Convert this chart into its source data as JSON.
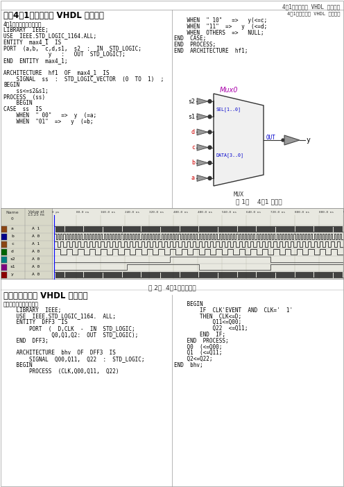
{
  "title": "4选1多路选择器 VHDL 语言设计",
  "section1_title": "一．4选1多路选择器 VHDL 语言设计",
  "section2_title": "二．三位触发器 VHDL 语言设计",
  "left_code_lines": [
    "4选1多路选择器源代码：",
    "LIBRARY  IEEE;",
    "USE  IEEE.STD_LOGIC_1164.ALL;",
    "ENTITY  max4_1  IS",
    "PORT  (a,b,  c,d,s1,  s2  :  IN  STD_LOGIC;",
    "              y   :   OUT  STD_LOGIC);",
    "END  ENTITY  max4_1;",
    "",
    "ARCHITECTURE  hf1  OF  max4_1  IS",
    "    SIGNAL  ss  :  STD_LOGIC_VECTOR  (0  TO  1)  ;",
    "BEGIN",
    "    ss<=s2&s1;",
    "PROCESS  (ss)",
    "    BEGIN",
    "CASE  ss  IS",
    "    WHEN  \" 00\"   =>  y  (=a;",
    "    WHEN  \"01\"  =>   y  (=b;"
  ],
  "right_header": "4选1多路选择器 VHDL 语言设计",
  "right_code_top": [
    "    WHEN  \" 10\"   =>   y(<=c;",
    "    WHEN  \"11\"  =>   y  (<=d;",
    "    WHEN  OTHERS  =>   NULL;",
    "END  CASE;",
    "END  PROCESS;",
    "END  ARCHITECTURE  hf1;"
  ],
  "mux0_label": "Mux0",
  "sel_label": "SEL[1..0]",
  "data_label": "DATA[3..0]",
  "out_label": "OUT",
  "y_out_label": "y",
  "mux_label": "MUX",
  "fig1_caption": "图 1．    4选1 电路图",
  "fig2_caption": "图 2．  4选1波形仿真图",
  "input_labels": [
    "s2",
    "s1",
    "d",
    "c",
    "b",
    "a"
  ],
  "wf_sig_names": [
    "0",
    "a",
    "b",
    "c",
    "d",
    "s2",
    "s1",
    "y"
  ],
  "wf_sig_values": [
    "",
    "A 1",
    "A 0",
    "A 1",
    "A 0",
    "A 0",
    "A 0",
    "A 0"
  ],
  "wf_colors": [
    "#888888",
    "#8B4513",
    "#00008B",
    "#8B4513",
    "#006400",
    "#008080",
    "#800080",
    "#8B0000"
  ],
  "section2_left": [
    "三位触发器设计源代码：",
    "    LIBRARY  IEEE;",
    "    USE  IEEE.STD_LOGIC_1164.  ALL;",
    "    ENTITY  DFF3  IS",
    "        PORT  (  D,CLK  -  IN  STD_LOGIC;",
    "               Q0,Q1,Q2:  OUT  STD_LOGIC);",
    "    END  DFF3;",
    "",
    "    ARCHITECTURE  bhv  OF  DFF3  IS",
    "        SIGNAL  Q00,Q11,  Q22  :  STD_LOGIC;",
    "    BEGIN",
    "        PROCESS  (CLK,Q00,Q11,  Q22)"
  ],
  "section2_right": [
    "    BEGIN",
    "        IF  CLK'EVENT  AND  CLK='  1'",
    "        THEN  CLK<=D;",
    "            Q11<=Q00;",
    "            Q22  <=Q11;",
    "        END  IF;",
    "    END  PROCESS;",
    "    Q0  (<=Q00;",
    "    Q1  (<=Q11;",
    "    Q2<=Q22;",
    "END  bhv;"
  ],
  "bg_color": "#ffffff",
  "text_color": "#000000",
  "code_color": "#000000",
  "purple_color": "#aa00aa",
  "blue_color": "#0000cc",
  "gray_color": "#808080"
}
